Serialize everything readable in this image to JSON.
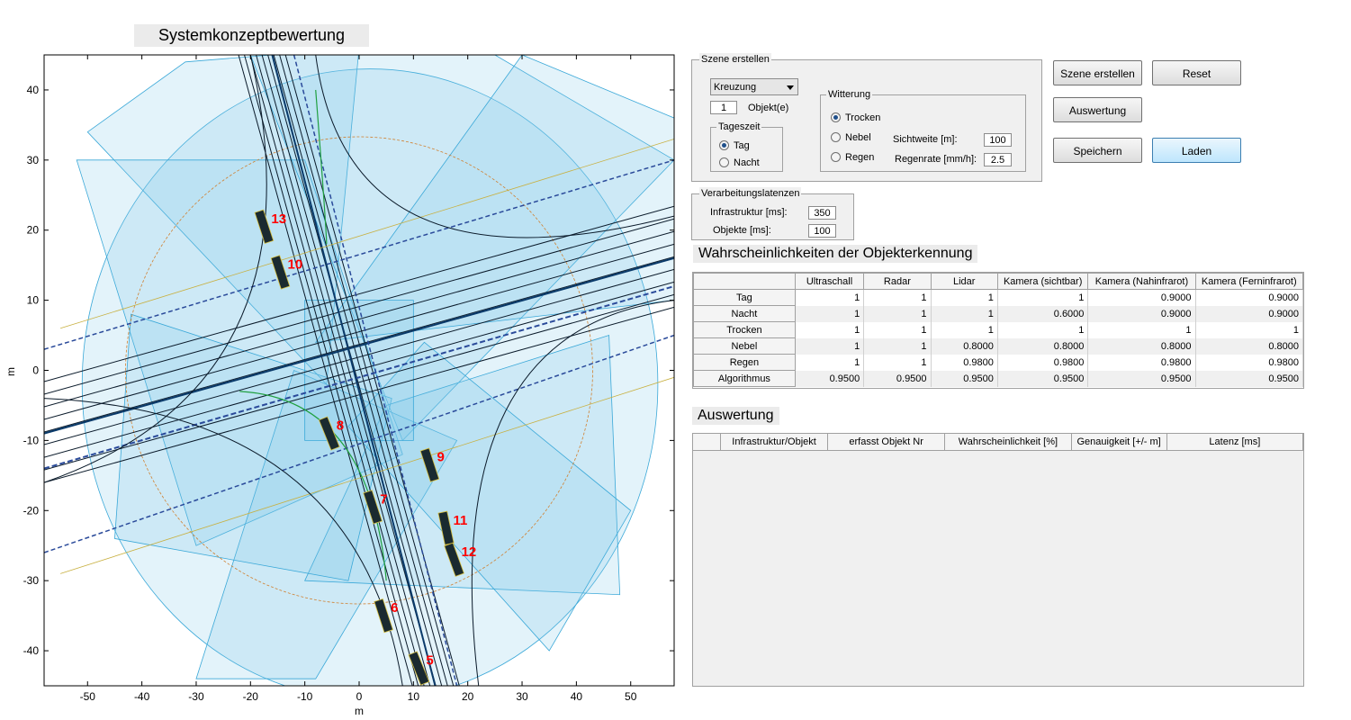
{
  "figure": {
    "title": "Systemkonzeptbewertung",
    "xlabel": "m",
    "ylabel": "m",
    "x_ticks": [
      "-50",
      "-40",
      "-30",
      "-20",
      "-10",
      "0",
      "10",
      "20",
      "30",
      "40",
      "50"
    ],
    "y_ticks": [
      "40",
      "30",
      "20",
      "10",
      "0",
      "-10",
      "-20",
      "-30",
      "-40"
    ],
    "xlim": [
      -58,
      58
    ],
    "ylim": [
      -45,
      45
    ],
    "vehicles": [
      {
        "label": "13",
        "x": -17.5,
        "y": 20.5,
        "angle": -18
      },
      {
        "label": "10",
        "x": -14.5,
        "y": 14,
        "angle": -18
      },
      {
        "label": "8",
        "x": -5.5,
        "y": -9,
        "angle": -22
      },
      {
        "label": "9",
        "x": 13,
        "y": -13.5,
        "angle": -18
      },
      {
        "label": "7",
        "x": 2.5,
        "y": -19.5,
        "angle": -18
      },
      {
        "label": "11",
        "x": 16,
        "y": -22.5,
        "angle": -12
      },
      {
        "label": "12",
        "x": 17.5,
        "y": -27,
        "angle": -20
      },
      {
        "label": "6",
        "x": 4.5,
        "y": -35,
        "angle": -18
      },
      {
        "label": "5",
        "x": 11,
        "y": -42.5,
        "angle": -22
      }
    ],
    "colors": {
      "vehicle": "#1a2a30",
      "label": "#ff0000",
      "coverage": "#7fc8ea",
      "coverage_edge": "#3aa8d8",
      "road": "#0a1a2a",
      "circle": "#d08030"
    }
  },
  "scene": {
    "legend": "Szene erstellen",
    "type_select": "Kreuzung",
    "object_count": "1",
    "object_label": "Objekt(e)",
    "tageszeit": {
      "legend": "Tageszeit",
      "options": [
        "Tag",
        "Nacht"
      ],
      "selected": 0
    },
    "witterung": {
      "legend": "Witterung",
      "options": [
        "Trocken",
        "Nebel",
        "Regen"
      ],
      "selected": 0,
      "sichtweite_label": "Sichtweite [m]:",
      "sichtweite_value": "100",
      "regenrate_label": "Regenrate [mm/h]:",
      "regenrate_value": "2.5"
    }
  },
  "buttons": {
    "szene_erstellen": "Szene erstellen",
    "reset": "Reset",
    "auswertung": "Auswertung",
    "speichern": "Speichern",
    "laden": "Laden"
  },
  "latenzen": {
    "legend": "Verarbeitungslatenzen",
    "infra_label": "Infrastruktur [ms]:",
    "infra_value": "350",
    "obj_label": "Objekte [ms]:",
    "obj_value": "100"
  },
  "prob_table": {
    "title": "Wahrscheinlichkeiten der Objekterkennung",
    "columns": [
      "Ultraschall",
      "Radar",
      "Lidar",
      "Kamera (sichtbar)",
      "Kamera (Nahinfrarot)",
      "Kamera (Ferninfrarot)"
    ],
    "rows": [
      {
        "label": "Tag",
        "values": [
          "1",
          "1",
          "1",
          "1",
          "0.9000",
          "0.9000"
        ]
      },
      {
        "label": "Nacht",
        "values": [
          "1",
          "1",
          "1",
          "0.6000",
          "0.9000",
          "0.9000"
        ]
      },
      {
        "label": "Trocken",
        "values": [
          "1",
          "1",
          "1",
          "1",
          "1",
          "1"
        ]
      },
      {
        "label": "Nebel",
        "values": [
          "1",
          "1",
          "0.8000",
          "0.8000",
          "0.8000",
          "0.8000"
        ]
      },
      {
        "label": "Regen",
        "values": [
          "1",
          "1",
          "0.9800",
          "0.9800",
          "0.9800",
          "0.9800"
        ]
      },
      {
        "label": "Algorithmus",
        "values": [
          "0.9500",
          "0.9500",
          "0.9500",
          "0.9500",
          "0.9500",
          "0.9500"
        ]
      }
    ]
  },
  "eval_table": {
    "title": "Auswertung",
    "columns": [
      "",
      "Infrastruktur/Objekt",
      "erfasst Objekt Nr",
      "Wahrscheinlichkeit [%]",
      "Genauigkeit [+/- m]",
      "Latenz [ms]"
    ]
  }
}
